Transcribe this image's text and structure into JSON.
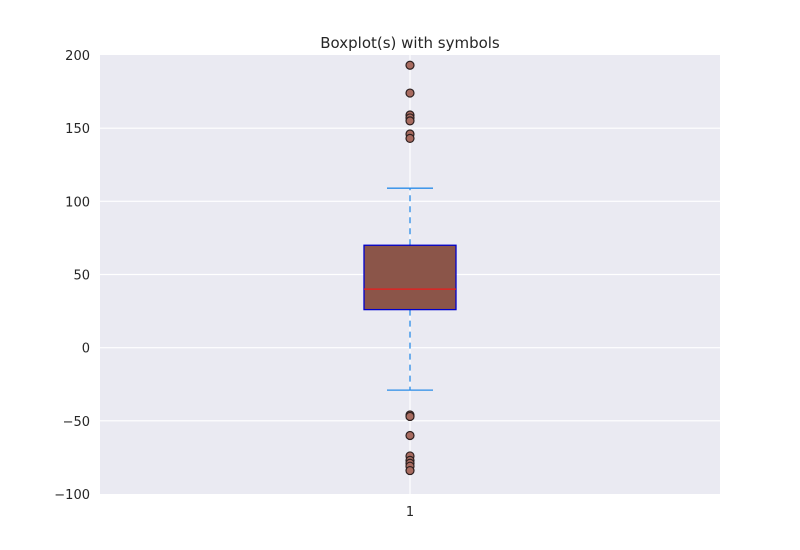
{
  "chart_data": {
    "type": "boxplot",
    "title": "Boxplot(s) with symbols",
    "xlabel": "",
    "ylabel": "",
    "ylim": [
      -100,
      200
    ],
    "yticks": [
      200,
      150,
      100,
      50,
      0,
      -50,
      -100
    ],
    "ytick_labels": [
      "200",
      "150",
      "100",
      "50",
      "0",
      "−50",
      "−100"
    ],
    "categories": [
      "1"
    ],
    "grid": true,
    "box": {
      "category": "1",
      "whisker_low": -29,
      "q1": 26,
      "median": 40,
      "q3": 70,
      "whisker_high": 109,
      "outliers": [
        193,
        174,
        159,
        157,
        155,
        146,
        143,
        -46,
        -47,
        -60,
        -74,
        -77,
        -79,
        -81,
        -84
      ]
    },
    "colors": {
      "background": "#eaeaf2",
      "grid": "#ffffff",
      "box_fill": "#8b5549",
      "box_edge": "#0000cc",
      "median": "#ee1c1c",
      "whisker": "#2b8ce8",
      "outlier_fill": "#a86b60",
      "outlier_edge": "#2d2020"
    }
  }
}
